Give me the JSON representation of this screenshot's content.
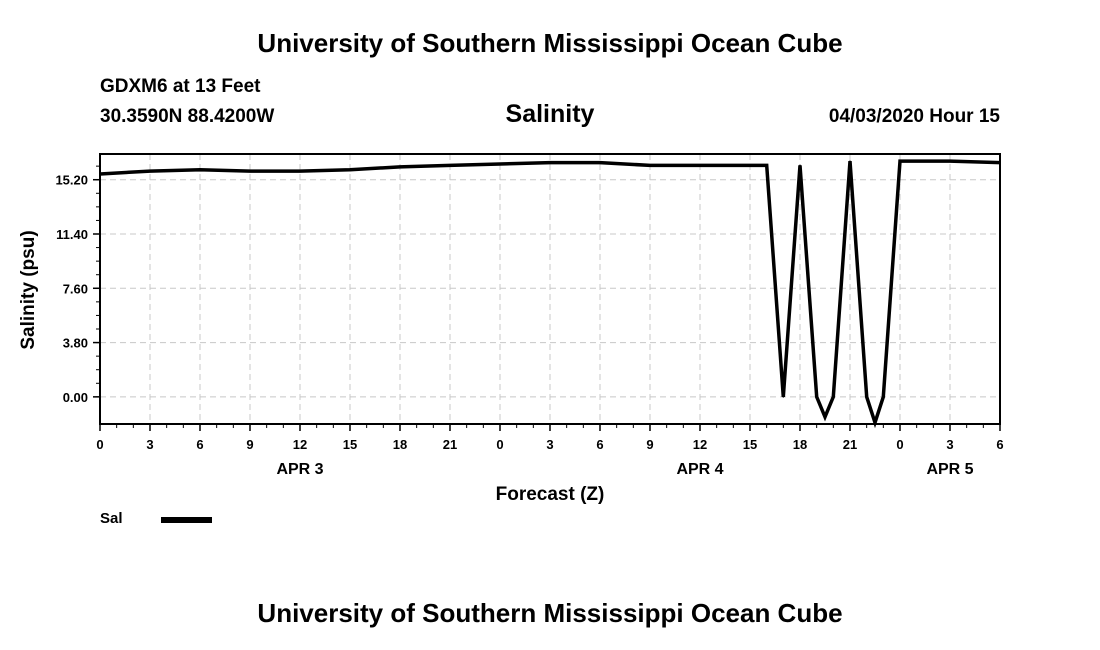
{
  "page": {
    "title_top": "University of Southern Mississippi Ocean Cube",
    "title_bottom": "University of Southern Mississippi Ocean Cube",
    "station": "GDXM6 at 13 Feet",
    "coordinates": "30.3590N 88.4200W",
    "run_info": "04/03/2020 Hour 15"
  },
  "chart_data": {
    "type": "line",
    "title": "Salinity",
    "xlabel": "Forecast (Z)",
    "ylabel": "Salinity (psu)",
    "xlim": [
      0,
      54
    ],
    "ylim": [
      -1.9,
      17.0
    ],
    "x_unit": "hours from APR 3 00Z",
    "grid": true,
    "legend_placement": "bottom-left",
    "yticks": [
      {
        "value": 0.0,
        "label": "0.00"
      },
      {
        "value": 3.8,
        "label": "3.80"
      },
      {
        "value": 7.6,
        "label": "7.60"
      },
      {
        "value": 11.4,
        "label": "11.40"
      },
      {
        "value": 15.2,
        "label": "15.20"
      }
    ],
    "xticks": [
      {
        "value": 0,
        "label": "0"
      },
      {
        "value": 3,
        "label": "3"
      },
      {
        "value": 6,
        "label": "6"
      },
      {
        "value": 9,
        "label": "9"
      },
      {
        "value": 12,
        "label": "12"
      },
      {
        "value": 15,
        "label": "15"
      },
      {
        "value": 18,
        "label": "18"
      },
      {
        "value": 21,
        "label": "21"
      },
      {
        "value": 24,
        "label": "0"
      },
      {
        "value": 27,
        "label": "3"
      },
      {
        "value": 30,
        "label": "6"
      },
      {
        "value": 33,
        "label": "9"
      },
      {
        "value": 36,
        "label": "12"
      },
      {
        "value": 39,
        "label": "15"
      },
      {
        "value": 42,
        "label": "18"
      },
      {
        "value": 45,
        "label": "21"
      },
      {
        "value": 48,
        "label": "0"
      },
      {
        "value": 51,
        "label": "3"
      },
      {
        "value": 54,
        "label": "6"
      }
    ],
    "date_labels": [
      {
        "value": 12,
        "label": "APR 3"
      },
      {
        "value": 36,
        "label": "APR 4"
      },
      {
        "value": 51,
        "label": "APR 5"
      }
    ],
    "series": [
      {
        "name": "Sal",
        "color": "#000000",
        "x": [
          0,
          3,
          6,
          9,
          12,
          15,
          18,
          21,
          24,
          27,
          30,
          33,
          36,
          39,
          40,
          41,
          42,
          43,
          43.5,
          44,
          45,
          46,
          46.5,
          47,
          48,
          51,
          54
        ],
        "y": [
          15.6,
          15.8,
          15.9,
          15.8,
          15.8,
          15.9,
          16.1,
          16.2,
          16.3,
          16.4,
          16.4,
          16.2,
          16.2,
          16.2,
          16.2,
          0.0,
          16.2,
          0.0,
          -1.4,
          0.0,
          16.5,
          0.0,
          -1.8,
          0.0,
          16.5,
          16.5,
          16.4
        ]
      }
    ]
  }
}
